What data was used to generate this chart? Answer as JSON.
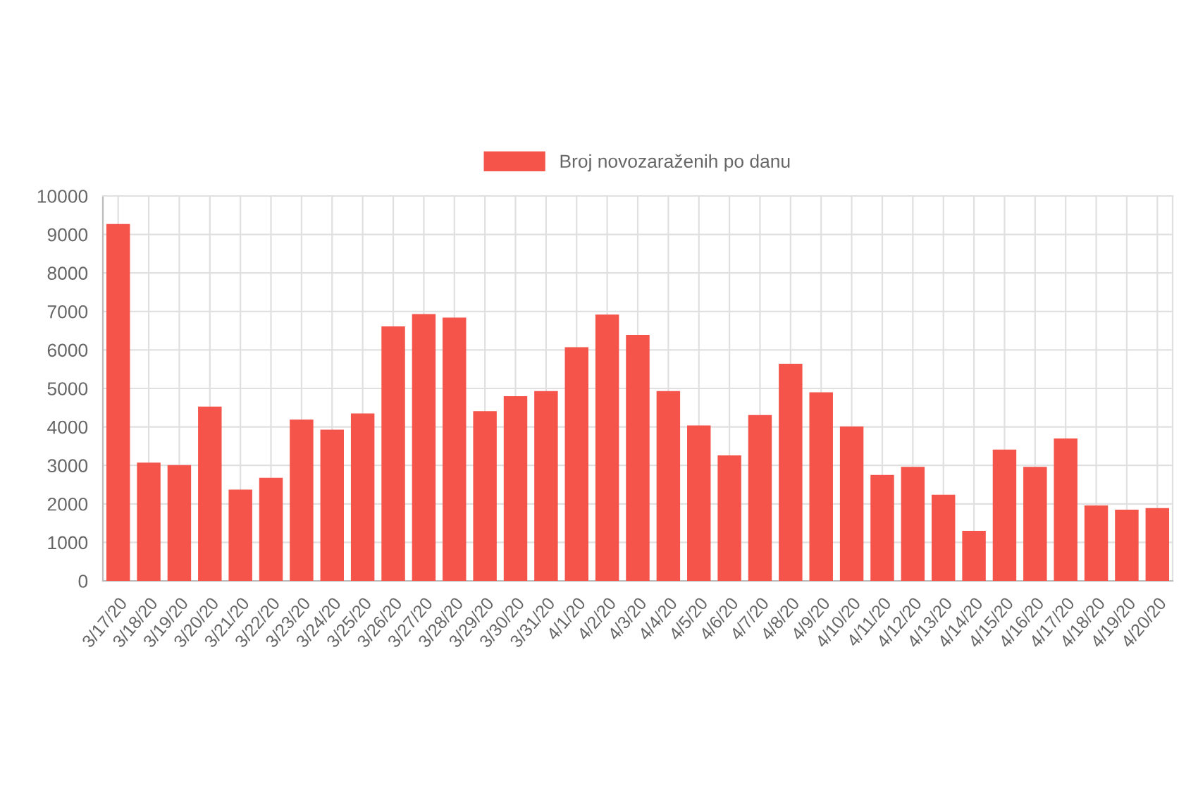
{
  "chart_data": {
    "type": "bar",
    "categories": [
      "3/17/20",
      "3/18/20",
      "3/19/20",
      "3/20/20",
      "3/21/20",
      "3/22/20",
      "3/23/20",
      "3/24/20",
      "3/25/20",
      "3/26/20",
      "3/27/20",
      "3/28/20",
      "3/29/20",
      "3/30/20",
      "3/31/20",
      "4/1/20",
      "4/2/20",
      "4/3/20",
      "4/4/20",
      "4/5/20",
      "4/6/20",
      "4/7/20",
      "4/8/20",
      "4/9/20",
      "4/10/20",
      "4/11/20",
      "4/12/20",
      "4/13/20",
      "4/14/20",
      "4/15/20",
      "4/16/20",
      "4/17/20",
      "4/18/20",
      "4/19/20",
      "4/20/20"
    ],
    "series": [
      {
        "name": "Broj novozaraženih po danu",
        "color": "#f5544b",
        "values": [
          9250,
          3050,
          2990,
          4510,
          2350,
          2660,
          4170,
          3910,
          4330,
          6590,
          6910,
          6820,
          4390,
          4780,
          4910,
          6050,
          6900,
          6370,
          4910,
          4020,
          3240,
          4290,
          5620,
          4880,
          3990,
          2730,
          2940,
          2220,
          1280,
          3390,
          2940,
          3680,
          1940,
          1830,
          1870
        ]
      }
    ],
    "ylim": [
      0,
      10000
    ],
    "yticks": [
      0,
      1000,
      2000,
      3000,
      4000,
      5000,
      6000,
      7000,
      8000,
      9000,
      10000
    ],
    "grid": true,
    "legend": "top"
  }
}
